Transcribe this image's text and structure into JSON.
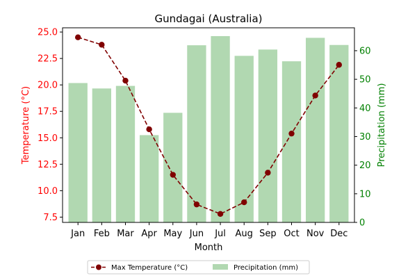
{
  "chart_data": {
    "type": "bar+line",
    "title": "Gundagai (Australia)",
    "xlabel": "Month",
    "categories": [
      "Jan",
      "Feb",
      "Mar",
      "Apr",
      "May",
      "Jun",
      "Jul",
      "Aug",
      "Sep",
      "Oct",
      "Nov",
      "Dec"
    ],
    "left_axis": {
      "label": "Temperature (°C)",
      "ylim": [
        7.0,
        25.4
      ],
      "ticks": [
        "7.5",
        "10.0",
        "12.5",
        "15.0",
        "17.5",
        "20.0",
        "22.5",
        "25.0"
      ],
      "color": "#ff0000"
    },
    "right_axis": {
      "label": "Precipitation (mm)",
      "ylim": [
        0,
        68
      ],
      "ticks": [
        "0",
        "10",
        "20",
        "30",
        "40",
        "50",
        "60"
      ],
      "color": "#008000"
    },
    "series": [
      {
        "name": "Max Temperature (°C)",
        "kind": "line",
        "axis": "left",
        "color": "#800000",
        "line_style": "dashed",
        "marker": "circle",
        "values": [
          24.5,
          23.8,
          20.4,
          15.8,
          11.5,
          8.7,
          7.8,
          8.9,
          11.7,
          15.4,
          19.0,
          21.9
        ]
      },
      {
        "name": "Precipitation (mm)",
        "kind": "bar",
        "axis": "right",
        "color": "#b1d8b1",
        "values": [
          48.7,
          46.8,
          47.7,
          30.5,
          38.3,
          61.9,
          65.1,
          58.2,
          60.4,
          56.3,
          64.5,
          62.0
        ]
      }
    ],
    "legend": {
      "position": "bottom-center",
      "columns": 2
    },
    "grid": false
  }
}
